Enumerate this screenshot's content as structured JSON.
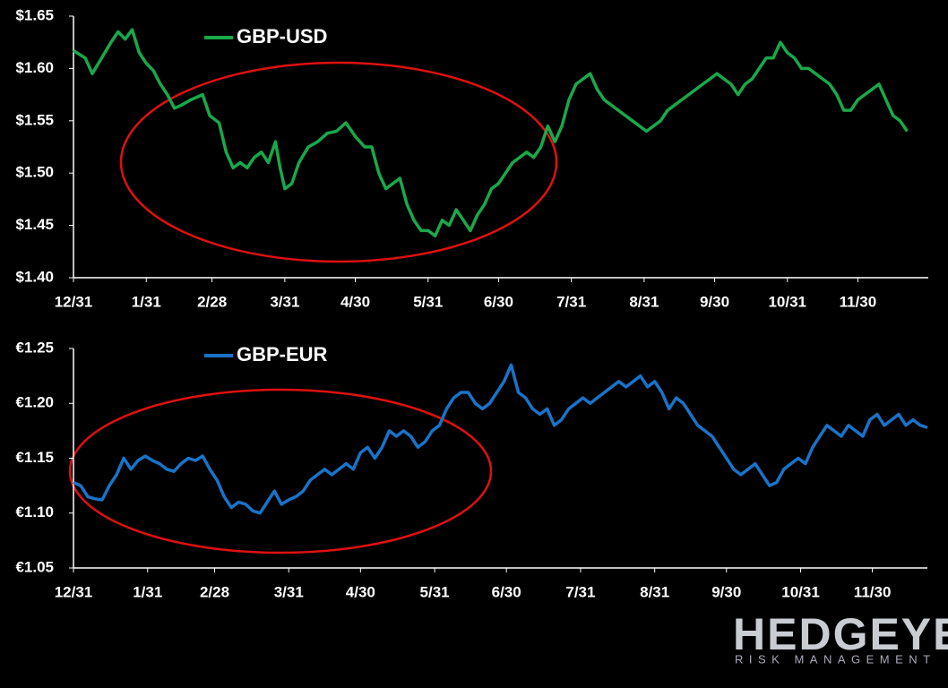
{
  "chart_data": [
    {
      "type": "line",
      "x": [
        0,
        5,
        8,
        12,
        16,
        19,
        22,
        25,
        28,
        31,
        34,
        37,
        40,
        43,
        46,
        50,
        55,
        58,
        62,
        65,
        68,
        71,
        74,
        77,
        80,
        83,
        86,
        88,
        90,
        93,
        96,
        100,
        104,
        108,
        112,
        116,
        120,
        124,
        127,
        130,
        133,
        136,
        139,
        142,
        145,
        148,
        151,
        154,
        157,
        160,
        163,
        166,
        169,
        172,
        175,
        178,
        181,
        184,
        187,
        190,
        193,
        196,
        199,
        202,
        205,
        208,
        211,
        214,
        217,
        220,
        223,
        226,
        229,
        232,
        235,
        238,
        241,
        244,
        247,
        250,
        253,
        256,
        259,
        262,
        265,
        268,
        271,
        274,
        277,
        280,
        283,
        286,
        289,
        292,
        295,
        298,
        301,
        304,
        307,
        310,
        313,
        316,
        319,
        322,
        325,
        328,
        331,
        334,
        337,
        340,
        343,
        346,
        349,
        352,
        355
      ],
      "series": [
        {
          "name": "GBP-USD",
          "color": "#1aa84a",
          "values": [
            1.617,
            1.61,
            1.595,
            1.61,
            1.625,
            1.635,
            1.628,
            1.637,
            1.615,
            1.605,
            1.598,
            1.585,
            1.575,
            1.562,
            1.565,
            1.57,
            1.575,
            1.555,
            1.548,
            1.52,
            1.505,
            1.51,
            1.505,
            1.515,
            1.52,
            1.51,
            1.53,
            1.505,
            1.485,
            1.49,
            1.51,
            1.525,
            1.53,
            1.538,
            1.54,
            1.548,
            1.535,
            1.525,
            1.525,
            1.5,
            1.485,
            1.49,
            1.495,
            1.47,
            1.455,
            1.445,
            1.445,
            1.44,
            1.455,
            1.45,
            1.465,
            1.455,
            1.445,
            1.46,
            1.47,
            1.485,
            1.49,
            1.5,
            1.51,
            1.515,
            1.52,
            1.515,
            1.525,
            1.545,
            1.53,
            1.545,
            1.57,
            1.585,
            1.59,
            1.595,
            1.58,
            1.57,
            1.565,
            1.56,
            1.555,
            1.55,
            1.545,
            1.54,
            1.545,
            1.55,
            1.56,
            1.565,
            1.57,
            1.575,
            1.58,
            1.585,
            1.59,
            1.595,
            1.59,
            1.585,
            1.575,
            1.585,
            1.59,
            1.6,
            1.61,
            1.61,
            1.625,
            1.615,
            1.61,
            1.6,
            1.6,
            1.595,
            1.59,
            1.585,
            1.575,
            1.56,
            1.56,
            1.57,
            1.575,
            1.58,
            1.585,
            1.57,
            1.555,
            1.55,
            1.54
          ]
        }
      ],
      "xlim": [
        0,
        364
      ],
      "xticks": [
        {
          "value": 0,
          "label": "12/31"
        },
        {
          "value": 31,
          "label": "1/31"
        },
        {
          "value": 59,
          "label": "2/28"
        },
        {
          "value": 90,
          "label": "3/31"
        },
        {
          "value": 120,
          "label": "4/30"
        },
        {
          "value": 151,
          "label": "5/31"
        },
        {
          "value": 181,
          "label": "6/30"
        },
        {
          "value": 212,
          "label": "7/31"
        },
        {
          "value": 243,
          "label": "8/31"
        },
        {
          "value": 273,
          "label": "9/30"
        },
        {
          "value": 304,
          "label": "10/31"
        },
        {
          "value": 334,
          "label": "11/30"
        }
      ],
      "ylim": [
        1.4,
        1.65
      ],
      "yticks": [
        {
          "value": 1.4,
          "label": "$1.40"
        },
        {
          "value": 1.45,
          "label": "$1.45"
        },
        {
          "value": 1.5,
          "label": "$1.50"
        },
        {
          "value": 1.55,
          "label": "$1.55"
        },
        {
          "value": 1.6,
          "label": "$1.60"
        },
        {
          "value": 1.65,
          "label": "$1.65"
        }
      ],
      "grid": false
    },
    {
      "type": "line",
      "x": [
        0,
        3,
        6,
        9,
        12,
        15,
        18,
        21,
        24,
        27,
        30,
        33,
        36,
        39,
        42,
        45,
        48,
        51,
        54,
        57,
        60,
        63,
        66,
        69,
        72,
        75,
        78,
        81,
        84,
        87,
        90,
        93,
        96,
        99,
        102,
        105,
        108,
        111,
        114,
        117,
        120,
        123,
        126,
        129,
        132,
        135,
        138,
        141,
        144,
        147,
        150,
        153,
        156,
        159,
        162,
        165,
        168,
        171,
        174,
        177,
        180,
        183,
        186,
        189,
        192,
        195,
        198,
        201,
        204,
        207,
        210,
        213,
        216,
        219,
        222,
        225,
        228,
        231,
        234,
        237,
        240,
        243,
        246,
        249,
        252,
        255,
        258,
        261,
        264,
        267,
        270,
        273,
        276,
        279,
        282,
        285,
        288,
        291,
        294,
        297,
        300,
        303,
        306,
        309,
        312,
        315,
        318,
        321,
        324,
        327,
        330,
        333,
        336,
        339,
        342,
        345,
        348,
        351,
        354,
        357
      ],
      "series": [
        {
          "name": "GBP-EUR",
          "color": "#1a73c8",
          "values": [
            1.128,
            1.125,
            1.115,
            1.113,
            1.112,
            1.125,
            1.135,
            1.15,
            1.14,
            1.148,
            1.152,
            1.148,
            1.145,
            1.14,
            1.138,
            1.145,
            1.15,
            1.148,
            1.152,
            1.14,
            1.13,
            1.115,
            1.105,
            1.11,
            1.108,
            1.102,
            1.1,
            1.11,
            1.12,
            1.108,
            1.112,
            1.115,
            1.12,
            1.13,
            1.135,
            1.14,
            1.135,
            1.14,
            1.145,
            1.14,
            1.155,
            1.16,
            1.15,
            1.16,
            1.175,
            1.17,
            1.175,
            1.17,
            1.16,
            1.165,
            1.175,
            1.18,
            1.195,
            1.205,
            1.21,
            1.21,
            1.2,
            1.195,
            1.2,
            1.21,
            1.22,
            1.235,
            1.21,
            1.205,
            1.195,
            1.19,
            1.195,
            1.18,
            1.185,
            1.195,
            1.2,
            1.205,
            1.2,
            1.205,
            1.21,
            1.215,
            1.22,
            1.215,
            1.22,
            1.225,
            1.215,
            1.22,
            1.21,
            1.195,
            1.205,
            1.2,
            1.19,
            1.18,
            1.175,
            1.17,
            1.16,
            1.15,
            1.14,
            1.135,
            1.14,
            1.145,
            1.135,
            1.125,
            1.128,
            1.14,
            1.145,
            1.15,
            1.145,
            1.16,
            1.17,
            1.18,
            1.175,
            1.17,
            1.18,
            1.175,
            1.17,
            1.185,
            1.19,
            1.18,
            1.185,
            1.19,
            1.18,
            1.185,
            1.18,
            1.178
          ]
        }
      ],
      "xlim": [
        0,
        357
      ],
      "xticks": [
        {
          "value": 0,
          "label": "12/31"
        },
        {
          "value": 31,
          "label": "1/31"
        },
        {
          "value": 59,
          "label": "2/28"
        },
        {
          "value": 90,
          "label": "3/31"
        },
        {
          "value": 120,
          "label": "4/30"
        },
        {
          "value": 151,
          "label": "5/31"
        },
        {
          "value": 181,
          "label": "6/30"
        },
        {
          "value": 212,
          "label": "7/31"
        },
        {
          "value": 243,
          "label": "8/31"
        },
        {
          "value": 273,
          "label": "9/30"
        },
        {
          "value": 304,
          "label": "10/31"
        },
        {
          "value": 334,
          "label": "11/30"
        }
      ],
      "ylim": [
        1.05,
        1.25
      ],
      "yticks": [
        {
          "value": 1.05,
          "label": "€1.05"
        },
        {
          "value": 1.1,
          "label": "€1.10"
        },
        {
          "value": 1.15,
          "label": "€1.15"
        },
        {
          "value": 1.2,
          "label": "€1.20"
        },
        {
          "value": 1.25,
          "label": "€1.25"
        }
      ],
      "grid": false
    }
  ],
  "logo": {
    "name": "HEDGEYE",
    "tagline": "RISK MANAGEMENT"
  }
}
